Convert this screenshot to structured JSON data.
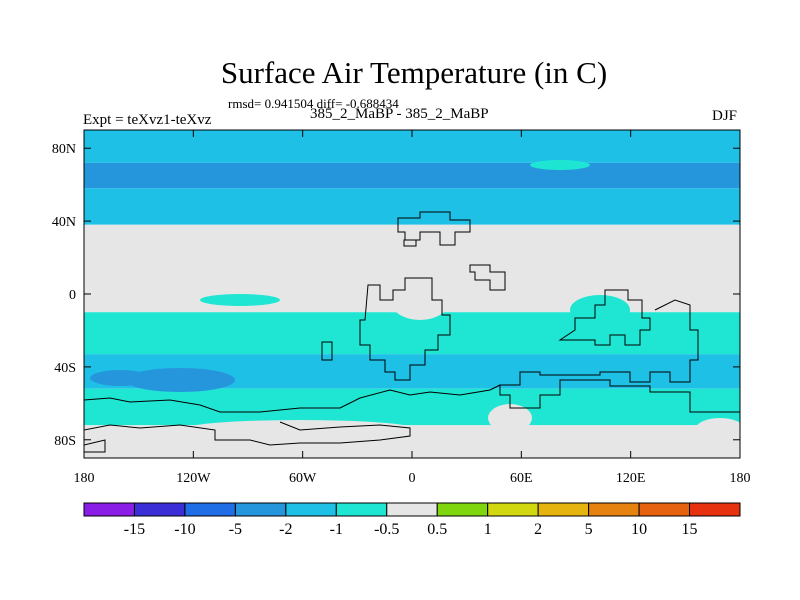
{
  "chart_data": {
    "type": "heatmap",
    "title": "Surface Air Temperature (in C)",
    "stats_line": "rmsd= 0.941504 diff= -0.688434",
    "left_annotation": "Expt = teXvz1-teXvz",
    "center_annotation": "385_2_MaBP - 385_2_MaBP",
    "right_annotation": "DJF",
    "x_range": [
      -180,
      180
    ],
    "y_range": [
      -90,
      90
    ],
    "x_ticks": [
      {
        "value": -180,
        "label": "180"
      },
      {
        "value": -120,
        "label": "120W"
      },
      {
        "value": -60,
        "label": "60W"
      },
      {
        "value": 0,
        "label": "0"
      },
      {
        "value": 60,
        "label": "60E"
      },
      {
        "value": 120,
        "label": "120E"
      },
      {
        "value": 180,
        "label": "180"
      }
    ],
    "y_ticks": [
      {
        "value": 80,
        "label": "80N"
      },
      {
        "value": 40,
        "label": "40N"
      },
      {
        "value": 0,
        "label": "0"
      },
      {
        "value": -40,
        "label": "40S"
      },
      {
        "value": -80,
        "label": "80S"
      }
    ],
    "colorbar": {
      "levels": [
        "-15",
        "-10",
        "-5",
        "-2",
        "-1",
        "-0.5",
        "0.5",
        "1",
        "2",
        "5",
        "10",
        "15"
      ],
      "colors": [
        "#8a1ee6",
        "#3c2ed6",
        "#1f6ee6",
        "#2596dc",
        "#1ec0e6",
        "#1fe6d2",
        "#e6e6e6",
        "#7fd60d",
        "#d2d80f",
        "#e6b40f",
        "#e6820f",
        "#e6620f",
        "#e6320f"
      ]
    },
    "bands": [
      {
        "lat": [
          72,
          90
        ],
        "color": "#1ec0e6"
      },
      {
        "lat": [
          58,
          72
        ],
        "color": "#2596dc"
      },
      {
        "lat": [
          38,
          58
        ],
        "color": "#1ec0e6"
      },
      {
        "lat": [
          2,
          38
        ],
        "color": "#e6e6e6"
      },
      {
        "lat": [
          -10,
          2
        ],
        "color": "#e6e6e6"
      },
      {
        "lat": [
          -33,
          -10
        ],
        "color": "#1fe6d2"
      },
      {
        "lat": [
          -52,
          -33
        ],
        "color": "#1ec0e6"
      },
      {
        "lat": [
          -72,
          -52
        ],
        "color": "#1fe6d2"
      },
      {
        "lat": [
          -90,
          -72
        ],
        "color": "#e6e6e6"
      }
    ]
  }
}
